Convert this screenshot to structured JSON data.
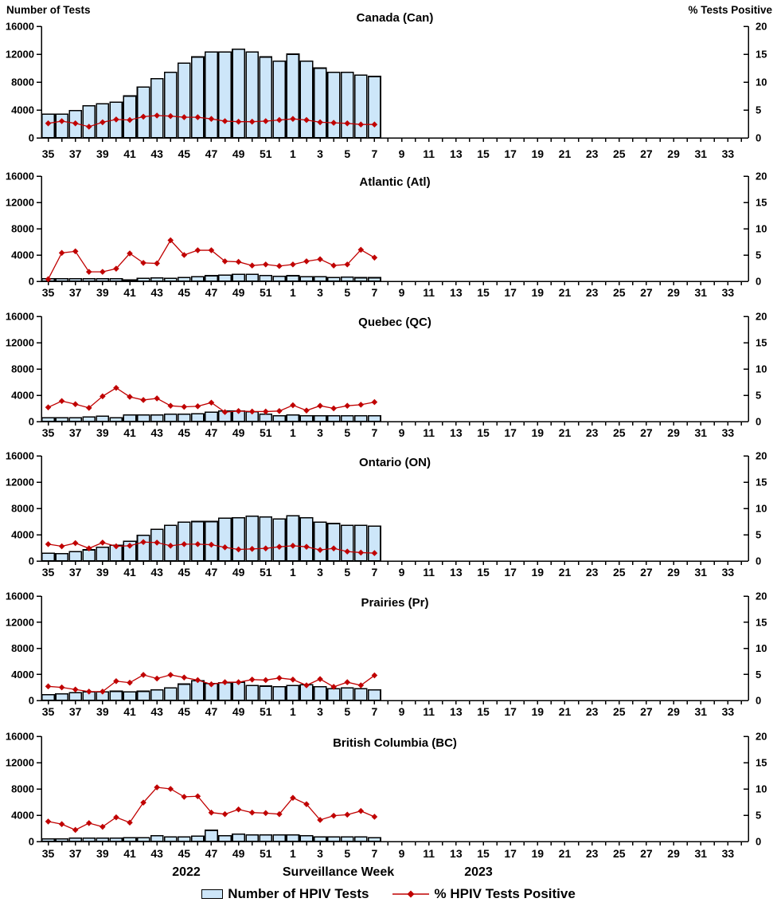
{
  "page": {
    "left_axis_title": "Number of Tests",
    "right_axis_title": "% Tests Positive",
    "x_axis_label": "Surveillance Week",
    "year_left": "2022",
    "year_right": "2023"
  },
  "legend": {
    "bar_label": "Number of HPIV Tests",
    "line_label": "% HPIV Tests Positive"
  },
  "colors": {
    "bar_fill": "#cde6f9",
    "bar_stroke": "#000000",
    "line_color": "#c00000",
    "axis_color": "#000000"
  },
  "axes": {
    "weeks": [
      35,
      36,
      37,
      38,
      39,
      40,
      41,
      42,
      43,
      44,
      45,
      46,
      47,
      48,
      49,
      50,
      51,
      52,
      1,
      2,
      3,
      4,
      5,
      6,
      7,
      8,
      9,
      10,
      11,
      12,
      13,
      14,
      15,
      16,
      17,
      18,
      19,
      20,
      21,
      22,
      23,
      24,
      25,
      26,
      27,
      28,
      29,
      30,
      31,
      32,
      33,
      34
    ],
    "x_labeled_ticks": [
      "35",
      "37",
      "39",
      "41",
      "43",
      "45",
      "47",
      "49",
      "51",
      "1",
      "3",
      "5",
      "7",
      "9",
      "11",
      "13",
      "15",
      "17",
      "19",
      "21",
      "23",
      "25",
      "27",
      "29",
      "31",
      "33"
    ],
    "left_ticks": [
      0,
      4000,
      8000,
      12000,
      16000
    ],
    "right_ticks": [
      0,
      5,
      10,
      15,
      20
    ],
    "left_range": [
      0,
      16000
    ],
    "right_range": [
      0,
      20
    ]
  },
  "chart_data": [
    {
      "title": "Canada (Can)",
      "type": "combo",
      "categories": [
        35,
        36,
        37,
        38,
        39,
        40,
        41,
        42,
        43,
        44,
        45,
        46,
        47,
        48,
        49,
        50,
        51,
        52,
        1,
        2,
        3,
        4,
        5,
        6,
        7
      ],
      "series": [
        {
          "name": "Number of HPIV Tests",
          "type": "bar",
          "y_axis": "left",
          "values": [
            3400,
            3400,
            3900,
            4600,
            4900,
            5100,
            6000,
            7300,
            8500,
            9400,
            10700,
            11600,
            12300,
            12300,
            12700,
            12300,
            11600,
            11000,
            12000,
            11000,
            10000,
            9400,
            9400,
            9000,
            8800
          ]
        },
        {
          "name": "% HPIV Tests Positive",
          "type": "line",
          "y_axis": "right",
          "values": [
            2.6,
            3.0,
            2.6,
            2.0,
            2.8,
            3.3,
            3.2,
            3.8,
            4.0,
            3.9,
            3.7,
            3.7,
            3.4,
            3.0,
            2.9,
            2.9,
            3.0,
            3.2,
            3.4,
            3.2,
            2.8,
            2.7,
            2.6,
            2.4,
            2.4
          ]
        }
      ]
    },
    {
      "title": "Atlantic (Atl)",
      "type": "combo",
      "categories": [
        35,
        36,
        37,
        38,
        39,
        40,
        41,
        42,
        43,
        44,
        45,
        46,
        47,
        48,
        49,
        50,
        51,
        52,
        1,
        2,
        3,
        4,
        5,
        6,
        7
      ],
      "series": [
        {
          "name": "Number of HPIV Tests",
          "type": "bar",
          "y_axis": "left",
          "values": [
            400,
            400,
            400,
            400,
            400,
            400,
            200,
            450,
            500,
            450,
            600,
            700,
            850,
            950,
            1050,
            1050,
            900,
            750,
            850,
            700,
            700,
            600,
            650,
            550,
            550
          ]
        },
        {
          "name": "% HPIV Tests Positive",
          "type": "line",
          "y_axis": "right",
          "values": [
            0.4,
            5.4,
            5.7,
            1.8,
            1.8,
            2.4,
            5.3,
            3.5,
            3.4,
            7.8,
            5.0,
            5.9,
            5.9,
            3.8,
            3.7,
            3.0,
            3.2,
            2.9,
            3.2,
            3.8,
            4.2,
            3.0,
            3.2,
            6.0,
            4.5
          ]
        }
      ]
    },
    {
      "title": "Quebec (QC)",
      "type": "combo",
      "categories": [
        35,
        36,
        37,
        38,
        39,
        40,
        41,
        42,
        43,
        44,
        45,
        46,
        47,
        48,
        49,
        50,
        51,
        52,
        1,
        2,
        3,
        4,
        5,
        6,
        7
      ],
      "series": [
        {
          "name": "Number of HPIV Tests",
          "type": "bar",
          "y_axis": "left",
          "values": [
            600,
            600,
            600,
            700,
            800,
            600,
            1000,
            1000,
            1000,
            1100,
            1100,
            1200,
            1400,
            1600,
            1600,
            1500,
            1100,
            900,
            1000,
            900,
            900,
            900,
            900,
            900,
            900
          ]
        },
        {
          "name": "% HPIV Tests Positive",
          "type": "line",
          "y_axis": "right",
          "values": [
            2.7,
            3.9,
            3.3,
            2.6,
            4.8,
            6.4,
            4.7,
            4.1,
            4.4,
            3.0,
            2.8,
            2.9,
            3.6,
            1.8,
            2.0,
            1.9,
            1.9,
            2.0,
            3.1,
            2.1,
            3.0,
            2.5,
            3.0,
            3.2,
            3.7
          ]
        }
      ]
    },
    {
      "title": "Ontario (ON)",
      "type": "combo",
      "categories": [
        35,
        36,
        37,
        38,
        39,
        40,
        41,
        42,
        43,
        44,
        45,
        46,
        47,
        48,
        49,
        50,
        51,
        52,
        1,
        2,
        3,
        4,
        5,
        6,
        7
      ],
      "series": [
        {
          "name": "Number of HPIV Tests",
          "type": "bar",
          "y_axis": "left",
          "values": [
            1200,
            1100,
            1400,
            1700,
            2100,
            2400,
            3000,
            3900,
            4800,
            5400,
            5900,
            6000,
            6000,
            6500,
            6600,
            6800,
            6700,
            6400,
            6900,
            6600,
            5900,
            5700,
            5400,
            5400,
            5300
          ]
        },
        {
          "name": "% HPIV Tests Positive",
          "type": "line",
          "y_axis": "right",
          "values": [
            3.2,
            2.8,
            3.4,
            2.4,
            3.5,
            2.8,
            2.9,
            3.6,
            3.5,
            2.9,
            3.2,
            3.2,
            3.1,
            2.6,
            2.2,
            2.3,
            2.4,
            2.7,
            2.9,
            2.7,
            2.1,
            2.4,
            1.8,
            1.6,
            1.5
          ]
        }
      ]
    },
    {
      "title": "Prairies (Pr)",
      "type": "combo",
      "categories": [
        35,
        36,
        37,
        38,
        39,
        40,
        41,
        42,
        43,
        44,
        45,
        46,
        47,
        48,
        49,
        50,
        51,
        52,
        1,
        2,
        3,
        4,
        5,
        6,
        7
      ],
      "series": [
        {
          "name": "Number of HPIV Tests",
          "type": "bar",
          "y_axis": "left",
          "values": [
            900,
            1000,
            1200,
            1300,
            1300,
            1400,
            1300,
            1400,
            1600,
            1900,
            2500,
            3000,
            2600,
            2700,
            2800,
            2300,
            2200,
            2100,
            2300,
            2400,
            2100,
            1800,
            1900,
            1800,
            1600
          ]
        },
        {
          "name": "% HPIV Tests Positive",
          "type": "line",
          "y_axis": "right",
          "values": [
            2.7,
            2.5,
            2.1,
            1.7,
            1.7,
            3.7,
            3.4,
            4.9,
            4.2,
            4.9,
            4.4,
            3.9,
            3.1,
            3.5,
            3.5,
            4.0,
            3.9,
            4.3,
            4.0,
            2.9,
            4.1,
            2.6,
            3.5,
            2.9,
            4.8
          ]
        }
      ]
    },
    {
      "title": "British Columbia (BC)",
      "type": "combo",
      "categories": [
        35,
        36,
        37,
        38,
        39,
        40,
        41,
        42,
        43,
        44,
        45,
        46,
        47,
        48,
        49,
        50,
        51,
        52,
        1,
        2,
        3,
        4,
        5,
        6,
        7
      ],
      "series": [
        {
          "name": "Number of HPIV Tests",
          "type": "bar",
          "y_axis": "left",
          "values": [
            400,
            400,
            500,
            500,
            500,
            500,
            600,
            600,
            900,
            700,
            700,
            800,
            1700,
            900,
            1100,
            1000,
            1000,
            1000,
            1000,
            900,
            700,
            700,
            700,
            700,
            600
          ]
        },
        {
          "name": "% HPIV Tests Positive",
          "type": "line",
          "y_axis": "right",
          "values": [
            3.8,
            3.3,
            2.2,
            3.5,
            2.8,
            4.6,
            3.6,
            7.4,
            10.3,
            10.0,
            8.5,
            8.6,
            5.5,
            5.2,
            6.1,
            5.5,
            5.4,
            5.2,
            8.3,
            7.1,
            4.1,
            4.9,
            5.1,
            5.8,
            4.7
          ]
        }
      ]
    }
  ]
}
